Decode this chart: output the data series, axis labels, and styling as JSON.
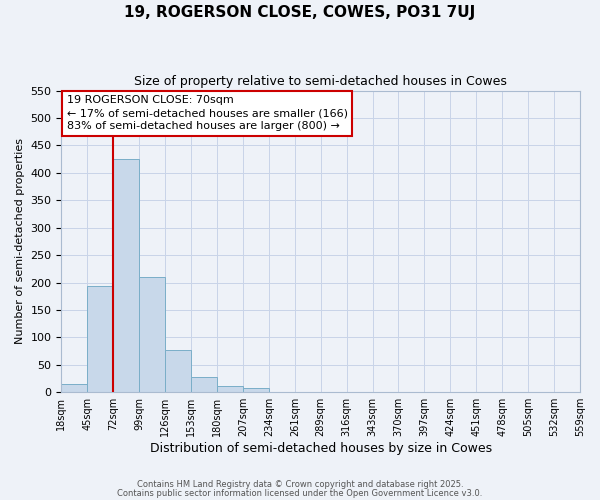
{
  "title": "19, ROGERSON CLOSE, COWES, PO31 7UJ",
  "subtitle": "Size of property relative to semi-detached houses in Cowes",
  "xlabel": "Distribution of semi-detached houses by size in Cowes",
  "ylabel": "Number of semi-detached properties",
  "bar_values": [
    15,
    193,
    425,
    210,
    77,
    27,
    12,
    8,
    0,
    0,
    0,
    0,
    0,
    0,
    0,
    0,
    0,
    0,
    0,
    0
  ],
  "bin_labels": [
    "18sqm",
    "45sqm",
    "72sqm",
    "99sqm",
    "126sqm",
    "153sqm",
    "180sqm",
    "207sqm",
    "234sqm",
    "261sqm",
    "289sqm",
    "316sqm",
    "343sqm",
    "370sqm",
    "397sqm",
    "424sqm",
    "451sqm",
    "478sqm",
    "505sqm",
    "532sqm",
    "559sqm"
  ],
  "bar_color": "#c8d8ea",
  "bar_edge_color": "#7aaec8",
  "grid_color": "#c8d4e8",
  "property_line_color": "#cc0000",
  "property_line_bin": 2,
  "annotation_text": "19 ROGERSON CLOSE: 70sqm\n← 17% of semi-detached houses are smaller (166)\n83% of semi-detached houses are larger (800) →",
  "annotation_box_facecolor": "#ffffff",
  "annotation_box_edgecolor": "#cc0000",
  "ylim": [
    0,
    550
  ],
  "yticks": [
    0,
    50,
    100,
    150,
    200,
    250,
    300,
    350,
    400,
    450,
    500,
    550
  ],
  "footer_line1": "Contains HM Land Registry data © Crown copyright and database right 2025.",
  "footer_line2": "Contains public sector information licensed under the Open Government Licence v3.0.",
  "background_color": "#eef2f8"
}
